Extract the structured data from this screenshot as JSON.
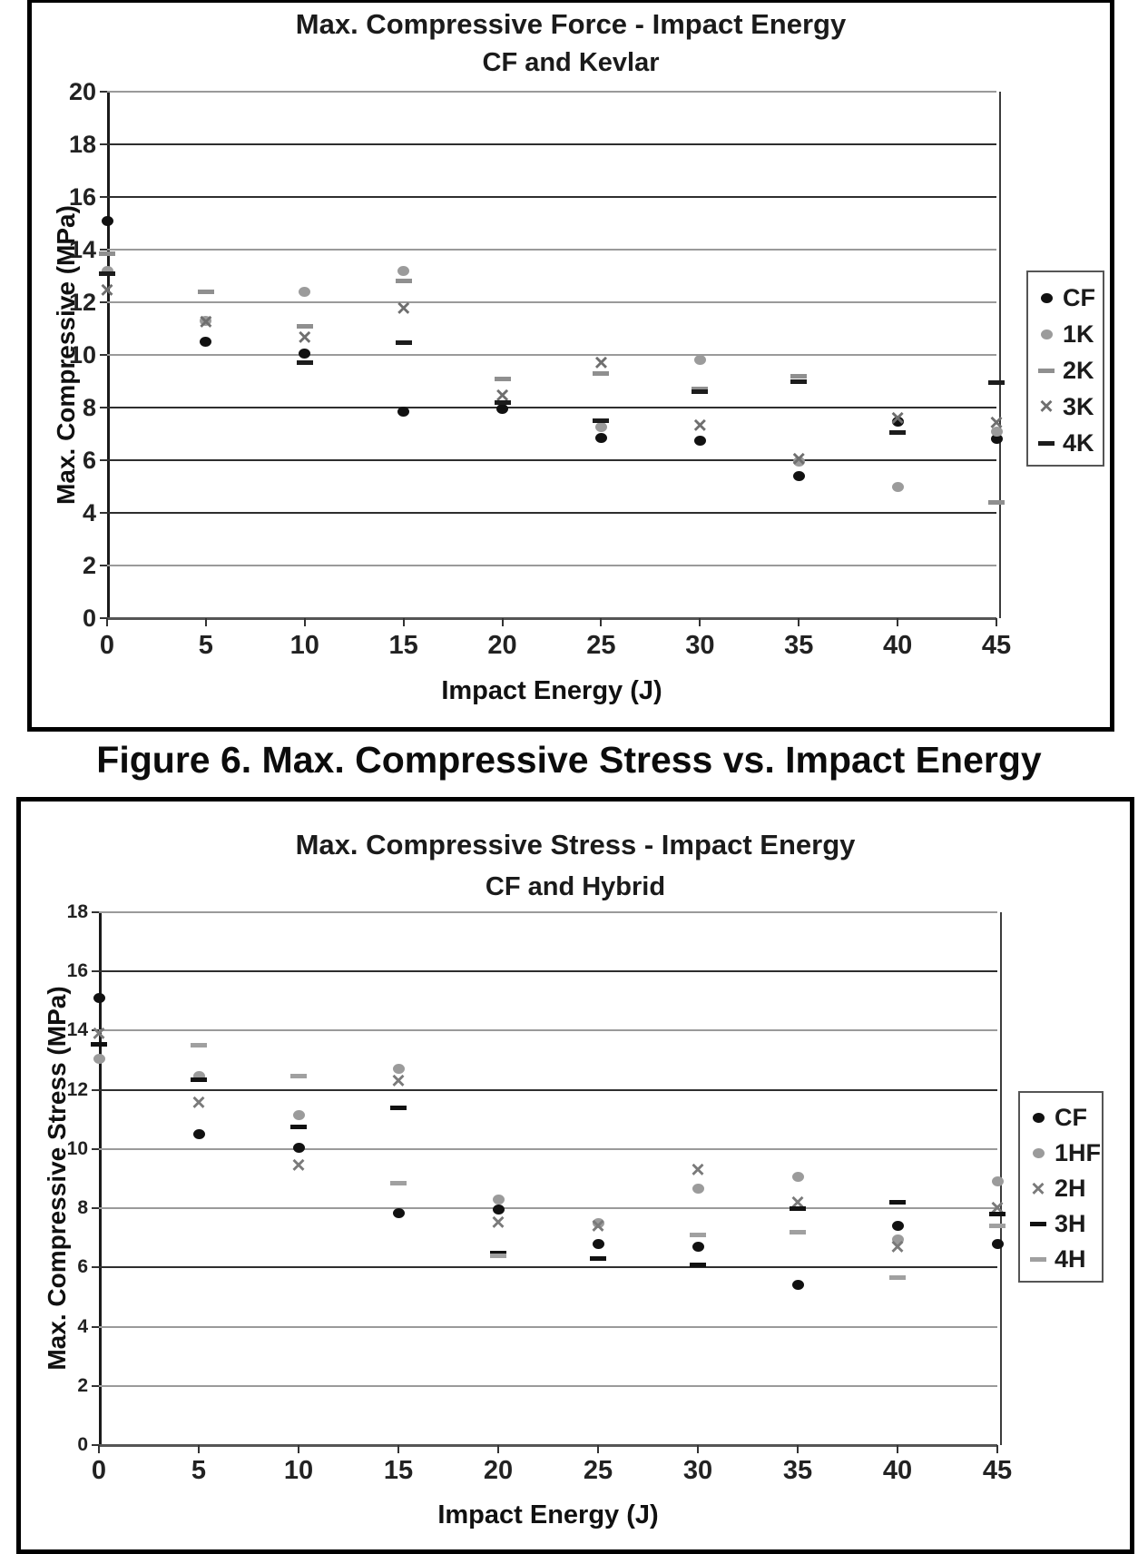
{
  "page": {
    "caption": "Figure 6. Max. Compressive Stress vs. Impact Energy"
  },
  "chart_data": [
    {
      "type": "scatter",
      "title": "Max. Compressive Force - Impact Energy",
      "subtitle": "CF and Kevlar",
      "xlabel": "Impact Energy (J)",
      "ylabel": "Max. Compressive (MPa)",
      "xlim": [
        0,
        45
      ],
      "ylim": [
        0,
        20
      ],
      "xticks": [
        0,
        5,
        10,
        15,
        20,
        25,
        30,
        35,
        40,
        45
      ],
      "yticks": [
        0,
        2,
        4,
        6,
        8,
        10,
        12,
        14,
        16,
        18,
        20
      ],
      "yticks_dark": [
        4,
        6,
        8,
        16,
        18
      ],
      "grid": true,
      "legend_position": "right",
      "x": [
        0,
        5,
        10,
        15,
        20,
        25,
        30,
        35,
        40,
        45
      ],
      "series": [
        {
          "name": "CF",
          "marker": "circle",
          "color": "#111111",
          "values": [
            15.1,
            10.5,
            10.05,
            7.85,
            7.95,
            6.85,
            6.75,
            5.4,
            7.45,
            6.8
          ]
        },
        {
          "name": "1K",
          "marker": "circle",
          "color": "#9b9b9b",
          "values": [
            13.2,
            11.3,
            12.4,
            13.2,
            null,
            7.25,
            9.8,
            5.95,
            5.0,
            7.1
          ]
        },
        {
          "name": "2K",
          "marker": "dash",
          "color": "#8f8f8f",
          "values": [
            13.85,
            12.4,
            11.1,
            12.8,
            9.1,
            9.3,
            8.7,
            9.2,
            null,
            4.4
          ]
        },
        {
          "name": "3K",
          "marker": "x",
          "color": "#6f6f6f",
          "values": [
            12.45,
            11.25,
            10.65,
            11.75,
            8.45,
            9.7,
            7.3,
            6.05,
            7.6,
            7.4
          ]
        },
        {
          "name": "4K",
          "marker": "dash",
          "color": "#1c1c1c",
          "values": [
            13.1,
            null,
            9.7,
            10.45,
            8.2,
            7.5,
            8.6,
            9.0,
            7.05,
            8.95
          ]
        }
      ]
    },
    {
      "type": "scatter",
      "title": "Max. Compressive Stress - Impact Energy",
      "subtitle": "CF and Hybrid",
      "xlabel": "Impact Energy (J)",
      "ylabel": "Max. Compressive Stress (MPa)",
      "xlim": [
        0,
        45
      ],
      "ylim": [
        0,
        18
      ],
      "xticks": [
        0,
        5,
        10,
        15,
        20,
        25,
        30,
        35,
        40,
        45
      ],
      "yticks": [
        0,
        2,
        4,
        6,
        8,
        10,
        12,
        14,
        16,
        18
      ],
      "yticks_dark": [
        6,
        12,
        16
      ],
      "grid": true,
      "legend_position": "right",
      "x": [
        0,
        5,
        10,
        15,
        20,
        25,
        30,
        35,
        40,
        45
      ],
      "series": [
        {
          "name": "CF",
          "marker": "circle",
          "color": "#111111",
          "values": [
            15.1,
            10.5,
            10.05,
            7.85,
            7.95,
            6.8,
            6.7,
            5.4,
            7.4,
            6.8
          ]
        },
        {
          "name": "1HF",
          "marker": "circle",
          "color": "#9b9b9b",
          "values": [
            13.05,
            12.45,
            11.15,
            12.7,
            8.3,
            7.5,
            8.65,
            9.05,
            6.95,
            8.9
          ]
        },
        {
          "name": "2H",
          "marker": "x",
          "color": "#7a7a7a",
          "values": [
            13.9,
            11.55,
            9.45,
            12.3,
            7.5,
            7.4,
            9.3,
            8.2,
            6.7,
            8.0
          ]
        },
        {
          "name": "3H",
          "marker": "dash",
          "color": "#111111",
          "values": [
            13.55,
            12.35,
            10.75,
            11.4,
            6.5,
            6.3,
            6.1,
            8.0,
            8.2,
            7.8
          ]
        },
        {
          "name": "4H",
          "marker": "dash",
          "color": "#a0a0a0",
          "values": [
            null,
            13.5,
            12.45,
            8.85,
            6.4,
            null,
            7.1,
            7.2,
            5.65,
            7.4
          ]
        }
      ]
    }
  ]
}
